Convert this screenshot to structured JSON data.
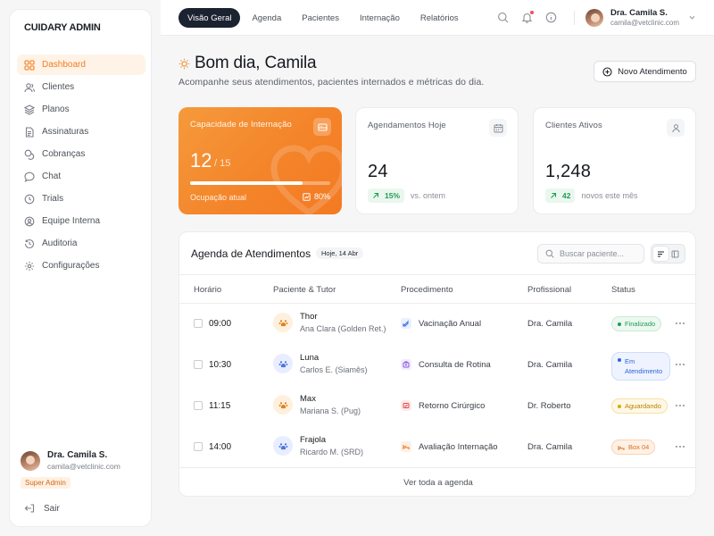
{
  "sidebar": {
    "brand": "CUIDARY ADMIN",
    "items": [
      {
        "label": "Dashboard",
        "icon": "grid-icon",
        "active": true
      },
      {
        "label": "Clientes",
        "icon": "users-icon"
      },
      {
        "label": "Planos",
        "icon": "layers-icon"
      },
      {
        "label": "Assinaturas",
        "icon": "file-text-icon"
      },
      {
        "label": "Cobranças",
        "icon": "coins-icon"
      },
      {
        "label": "Chat",
        "icon": "message-icon"
      },
      {
        "label": "Trials",
        "icon": "clock-icon"
      },
      {
        "label": "Equipe Interna",
        "icon": "user-circle-icon"
      },
      {
        "label": "Auditoria",
        "icon": "history-icon"
      },
      {
        "label": "Configurações",
        "icon": "gear-icon"
      }
    ],
    "user": {
      "name": "Dra. Camila S.",
      "email": "camila@vetclinic.com",
      "role": "Super Admin"
    },
    "logout_label": "Sair"
  },
  "topbar": {
    "tabs": [
      {
        "label": "Visão Geral",
        "active": true
      },
      {
        "label": "Agenda"
      },
      {
        "label": "Pacientes"
      },
      {
        "label": "Internação"
      },
      {
        "label": "Relatórios"
      }
    ],
    "icons": [
      "search-icon",
      "bell-icon",
      "info-icon"
    ],
    "user": {
      "name": "Dra. Camila S.",
      "email": "camila@vetclinic.com"
    }
  },
  "header": {
    "greeting": "Bom dia, Camila",
    "subtitle": "Acompanhe seus atendimentos, pacientes internados e métricas do dia.",
    "new_button": "Novo Atendimento"
  },
  "cards": {
    "capacity": {
      "title": "Capacidade de Internação",
      "current": "12",
      "total": "/ 15",
      "label": "Ocupação atual",
      "percent": "80%",
      "fill": 0.8
    },
    "appointments": {
      "title": "Agendamentos Hoje",
      "value": "24",
      "trend": "15%",
      "note": "vs. ontem"
    },
    "clients": {
      "title": "Clientes Ativos",
      "value": "1,248",
      "trend": "42",
      "note": "novos este mês"
    }
  },
  "agenda": {
    "title": "Agenda de Atendimentos",
    "date": "Hoje, 14 Abr",
    "search_placeholder": "Buscar paciente...",
    "columns": [
      "Horário",
      "Paciente & Tutor",
      "Procedimento",
      "Profissional",
      "Status"
    ],
    "rows": [
      {
        "time": "09:00",
        "pet": "Thor",
        "tutor": "Ana Clara (Golden Ret.)",
        "procedure": "Vacinação Anual",
        "professional": "Dra. Camila",
        "status": "Finalizado"
      },
      {
        "time": "10:30",
        "pet": "Luna",
        "tutor": "Carlos E. (Siamês)",
        "procedure": "Consulta de Rotina",
        "professional": "Dra. Camila",
        "status": "Em Atendimento"
      },
      {
        "time": "11:15",
        "pet": "Max",
        "tutor": "Mariana S. (Pug)",
        "procedure": "Retorno Cirúrgico",
        "professional": "Dr. Roberto",
        "status": "Aguardando"
      },
      {
        "time": "14:00",
        "pet": "Frajola",
        "tutor": "Ricardo M. (SRD)",
        "procedure": "Avaliação Internação",
        "professional": "Dra. Camila",
        "status": "Box 04"
      }
    ],
    "footer_link": "Ver toda a agenda"
  },
  "colors": {
    "accent": "#f4842a",
    "dark": "#1b2230",
    "success": "#1f9d55",
    "info": "#2f63d8",
    "warning": "#e0a400"
  }
}
